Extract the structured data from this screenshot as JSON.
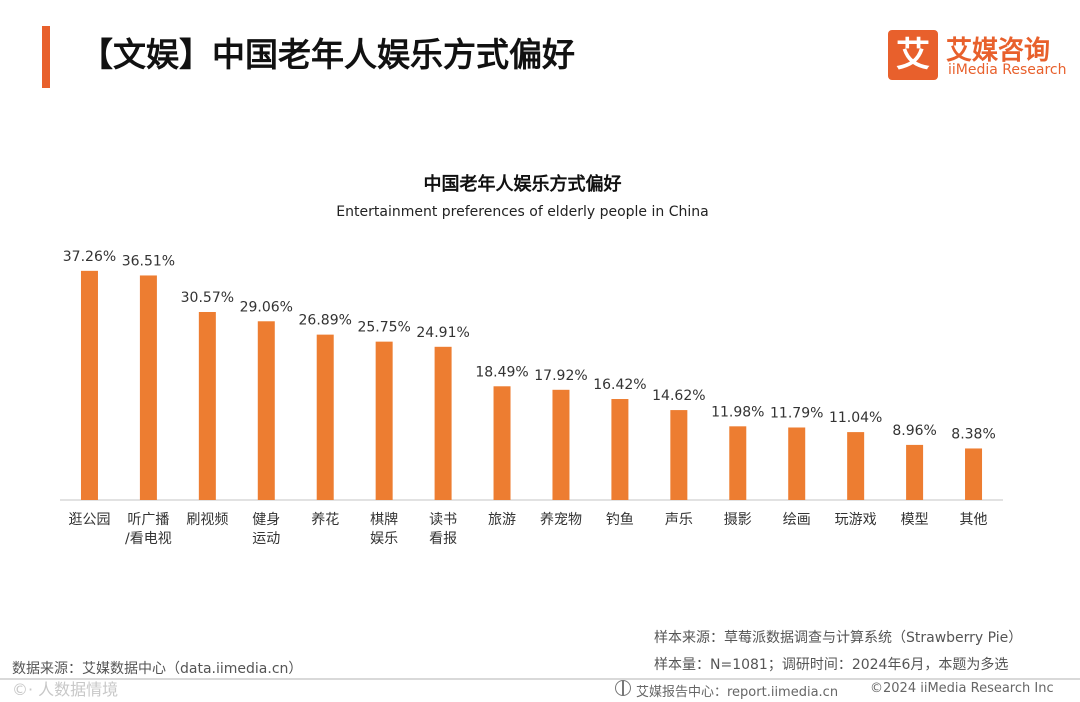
{
  "header": {
    "title": "【文娱】中国老年人娱乐方式偏好"
  },
  "logo": {
    "mark": "艾",
    "name_cn": "艾媒咨询",
    "name_en": "iiMedia Research"
  },
  "colors": {
    "accent": "#e8602c",
    "bar": "#ed7d31",
    "axis": "#d9d9d9"
  },
  "chart_data": {
    "type": "bar",
    "title": "中国老年人娱乐方式偏好",
    "subtitle": "Entertainment preferences of elderly people in China",
    "categories": [
      "逛公园",
      "听广播/看电视",
      "刷视频",
      "健身运动",
      "养花",
      "棋牌娱乐",
      "读书看报",
      "旅游",
      "养宠物",
      "钓鱼",
      "声乐",
      "摄影",
      "绘画",
      "玩游戏",
      "模型",
      "其他"
    ],
    "category_lines": [
      [
        "逛公园"
      ],
      [
        "听广播",
        "/看电视"
      ],
      [
        "刷视频"
      ],
      [
        "健身",
        "运动"
      ],
      [
        "养花"
      ],
      [
        "棋牌",
        "娱乐"
      ],
      [
        "读书",
        "看报"
      ],
      [
        "旅游"
      ],
      [
        "养宠物"
      ],
      [
        "钓鱼"
      ],
      [
        "声乐"
      ],
      [
        "摄影"
      ],
      [
        "绘画"
      ],
      [
        "玩游戏"
      ],
      [
        "模型"
      ],
      [
        "其他"
      ]
    ],
    "values": [
      37.26,
      36.51,
      30.57,
      29.06,
      26.89,
      25.75,
      24.91,
      18.49,
      17.92,
      16.42,
      14.62,
      11.98,
      11.79,
      11.04,
      8.96,
      8.38
    ],
    "labels": [
      "37.26%",
      "36.51%",
      "30.57%",
      "29.06%",
      "26.89%",
      "25.75%",
      "24.91%",
      "18.49%",
      "17.92%",
      "16.42%",
      "14.62%",
      "11.98%",
      "11.79%",
      "11.04%",
      "8.96%",
      "8.38%"
    ],
    "unit": "%",
    "ylim": [
      0,
      40
    ],
    "grid": false,
    "legend": "none"
  },
  "footer": {
    "source": "数据来源：艾媒数据中心（data.iimedia.cn）",
    "sample_source": "样本来源：草莓派数据调查与计算系统（Strawberry Pie）",
    "sample_info": "样本量：N=1081；调研时间：2024年6月，本题为多选",
    "watermark": "©· 人数据情境",
    "report_center": "艾媒报告中心：report.iimedia.cn",
    "copyright": "©2024  iiMedia Research Inc"
  }
}
